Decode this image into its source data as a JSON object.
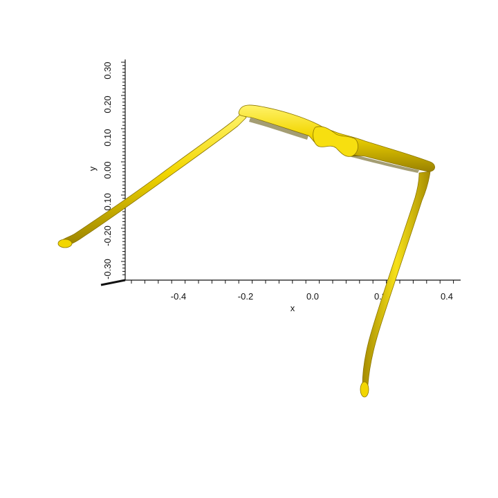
{
  "figure": {
    "object": "3D mesh rendering of eyeglasses frame",
    "object_color": "#f2d600",
    "object_shadow": "#7a6a00",
    "background": "#ffffff"
  },
  "axes": {
    "x": {
      "label": "x",
      "tick_labels": [
        "-0.4",
        "-0.2",
        "0.0",
        "0.2",
        "0.4"
      ]
    },
    "y": {
      "label": "y",
      "tick_labels": [
        "0.30",
        "0.20",
        "0.10",
        "0.00",
        "-0.10",
        "-0.20",
        "-0.30"
      ]
    }
  }
}
